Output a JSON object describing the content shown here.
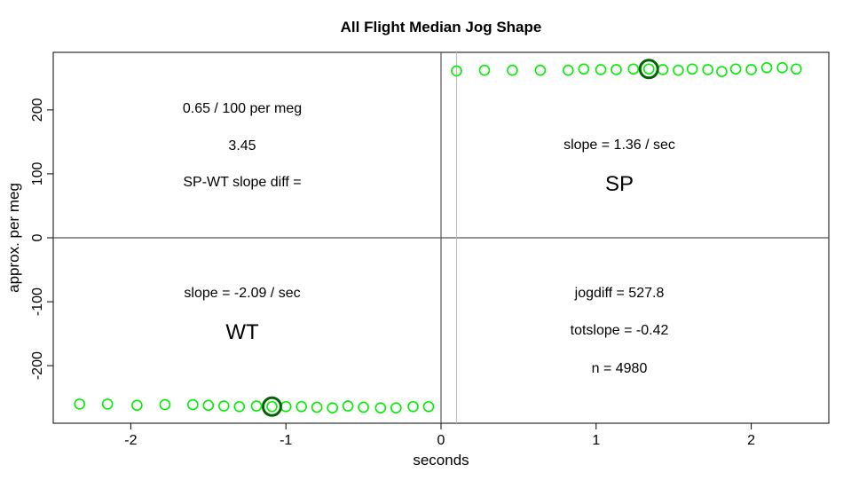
{
  "chart_data": {
    "type": "scatter",
    "title": "All Flight Median Jog Shape",
    "xlabel": "seconds",
    "ylabel": "approx. per meg",
    "xlim": [
      -2.5,
      2.5
    ],
    "ylim": [
      -290,
      290
    ],
    "x_ticks": [
      -2,
      -1,
      0,
      1,
      2
    ],
    "y_ticks": [
      -200,
      -100,
      0,
      100,
      200
    ],
    "grid": false,
    "point_color": "#00ee00",
    "highlight_color": "#006400",
    "reference_lines": {
      "horizontal_y": 0,
      "vertical_x": [
        0,
        0.1
      ]
    },
    "series": [
      {
        "x": [
          -2.33,
          -2.15,
          -1.96,
          -1.78,
          -1.6,
          -1.5,
          -1.4,
          -1.3,
          -1.19,
          -1.09,
          -1.0,
          -0.9,
          -0.8,
          -0.7,
          -0.6,
          -0.5,
          -0.39,
          -0.29,
          -0.18,
          -0.08
        ],
        "values": [
          -260,
          -260,
          -262,
          -261,
          -261,
          -262,
          -263,
          -264,
          -263,
          -264,
          -264,
          -264,
          -265,
          -266,
          -263,
          -265,
          -266,
          -266,
          -264,
          -264
        ]
      },
      {
        "x": [
          0.1,
          0.28,
          0.46,
          0.64,
          0.82,
          0.92,
          1.03,
          1.13,
          1.24,
          1.34,
          1.43,
          1.53,
          1.62,
          1.72,
          1.81,
          1.9,
          2.0,
          2.1,
          2.2,
          2.29
        ],
        "values": [
          261,
          262,
          262,
          262,
          262,
          264,
          263,
          263,
          264,
          264,
          263,
          262,
          264,
          263,
          260,
          264,
          263,
          266,
          266,
          264
        ]
      }
    ],
    "highlighted_points": [
      {
        "x": -1.09,
        "y": -264
      },
      {
        "x": 1.34,
        "y": 264
      }
    ]
  },
  "annotations": {
    "wt_slope_per_meg": "0.65 / 100 per meg",
    "slope_diff_value": "3.45",
    "slope_diff_label": "SP-WT slope diff =",
    "sp_slope": "slope = 1.36 / sec",
    "sp_label": "SP",
    "wt_slope": "slope = -2.09 / sec",
    "wt_label": "WT",
    "jogdiff": "jogdiff = 527.8",
    "totslope": "totslope = -0.42",
    "n": "n = 4980"
  }
}
